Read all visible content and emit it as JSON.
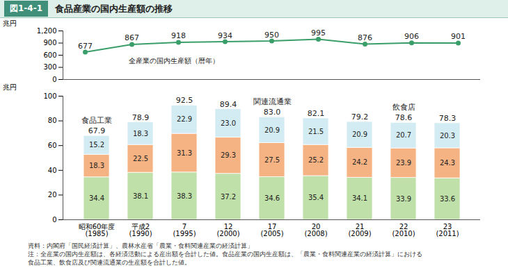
{
  "figure": {
    "number": "図1-4-1",
    "title": "食品産業の国内生産額の推移"
  },
  "notes": [
    "資料：内閣府「国民経済計算」、農林水産省「農業・食料関連産業の経済計算」",
    "注：全産業の国内生産額は、各経済活動による産出額を合計した値。食品産業の国内生産額は、「農業・食料関連産業の経済計算」における",
    "食品工業、飲食店及び関連流通業の生産額を合計した値。"
  ],
  "chart_data": [
    {
      "type": "line",
      "ylabel": "兆円",
      "categories": [
        "昭和60年度\n(1985)",
        "平成2\n(1990)",
        "7\n(1995)",
        "12\n(2000)",
        "17\n(2005)",
        "20\n(2008)",
        "21\n(2009)",
        "22\n(2010)",
        "23\n(2011)"
      ],
      "series": [
        {
          "name": "全産業の国内生産額（暦年）",
          "color": "#3a9e6a",
          "marker": "circle",
          "values": [
            677,
            867,
            918,
            934,
            950,
            995,
            876,
            906,
            901
          ]
        }
      ],
      "ylim": [
        0,
        1200
      ],
      "yticks": [
        0,
        300,
        600,
        900,
        {
          "value": 1200,
          "label": "1,200"
        }
      ],
      "tick_labels": "y",
      "data_labels": true,
      "grid": false
    },
    {
      "type": "bar",
      "stacked": true,
      "ylabel": "兆円",
      "categories": [
        "昭和60年度\n(1985)",
        "平成2\n(1990)",
        "7\n(1995)",
        "12\n(2000)",
        "17\n(2005)",
        "20\n(2008)",
        "21\n(2009)",
        "22\n(2010)",
        "23\n(2011)"
      ],
      "series": [
        {
          "name": "食品工業",
          "color": "#bfe0a8",
          "values": [
            34.4,
            38.1,
            38.3,
            37.2,
            34.6,
            35.4,
            34.1,
            33.9,
            33.6
          ],
          "value_labels": [
            "34.4",
            "38.1",
            "38.3",
            "37.2",
            "34.6",
            "35.4",
            "34.1",
            "33.9",
            "33.6"
          ]
        },
        {
          "name": "関連流通業",
          "color": "#f5b283",
          "values": [
            18.3,
            22.5,
            31.3,
            29.3,
            27.5,
            25.2,
            24.2,
            23.9,
            24.3
          ],
          "value_labels": [
            "18.3",
            "22.5",
            "31.3",
            "29.3",
            "27.5",
            "25.2",
            "24.2",
            "23.9",
            "24.3"
          ]
        },
        {
          "name": "飲食店",
          "color": "#d3ecf4",
          "values": [
            15.2,
            18.3,
            22.9,
            23.0,
            20.9,
            21.5,
            20.9,
            20.7,
            20.3
          ],
          "value_labels": [
            "15.2",
            "18.3",
            "22.9",
            "23.0",
            "20.9",
            "21.5",
            "20.9",
            "20.7",
            "20.3"
          ]
        }
      ],
      "totals": [
        67.9,
        78.9,
        92.5,
        89.4,
        83.0,
        82.1,
        79.2,
        78.6,
        78.3
      ],
      "total_labels": [
        "67.9",
        "78.9",
        "92.5",
        "89.4",
        "83.0",
        "82.1",
        "79.2",
        "78.6",
        "78.3"
      ],
      "ylim": [
        0,
        100
      ],
      "yticks": [
        0,
        20,
        40,
        60,
        80,
        100
      ],
      "data_labels": true,
      "grid": false
    }
  ]
}
